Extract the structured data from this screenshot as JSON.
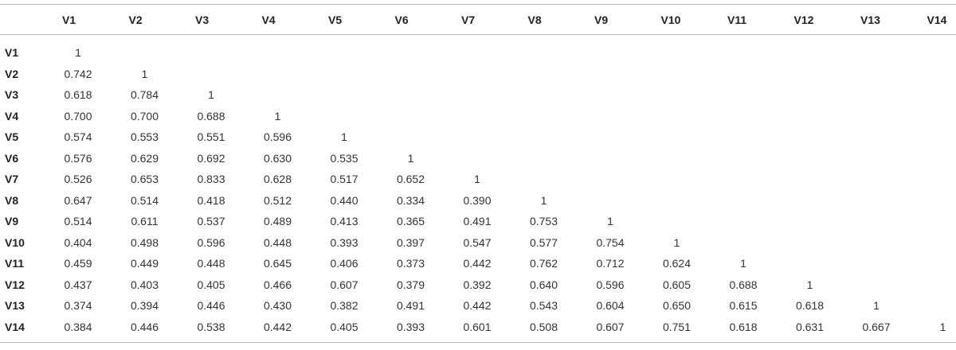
{
  "table": {
    "columns": [
      "V1",
      "V2",
      "V3",
      "V4",
      "V5",
      "V6",
      "V7",
      "V8",
      "V9",
      "V10",
      "V11",
      "V12",
      "V13",
      "V14"
    ],
    "rows": [
      {
        "label": "V1",
        "values": [
          "1"
        ]
      },
      {
        "label": "V2",
        "values": [
          "0.742",
          "1"
        ]
      },
      {
        "label": "V3",
        "values": [
          "0.618",
          "0.784",
          "1"
        ]
      },
      {
        "label": "V4",
        "values": [
          "0.700",
          "0.700",
          "0.688",
          "1"
        ]
      },
      {
        "label": "V5",
        "values": [
          "0.574",
          "0.553",
          "0.551",
          "0.596",
          "1"
        ]
      },
      {
        "label": "V6",
        "values": [
          "0.576",
          "0.629",
          "0.692",
          "0.630",
          "0.535",
          "1"
        ]
      },
      {
        "label": "V7",
        "values": [
          "0.526",
          "0.653",
          "0.833",
          "0.628",
          "0.517",
          "0.652",
          "1"
        ]
      },
      {
        "label": "V8",
        "values": [
          "0.647",
          "0.514",
          "0.418",
          "0.512",
          "0.440",
          "0.334",
          "0.390",
          "1"
        ]
      },
      {
        "label": "V9",
        "values": [
          "0.514",
          "0.611",
          "0.537",
          "0.489",
          "0.413",
          "0.365",
          "0.491",
          "0.753",
          "1"
        ]
      },
      {
        "label": "V10",
        "values": [
          "0.404",
          "0.498",
          "0.596",
          "0.448",
          "0.393",
          "0.397",
          "0.547",
          "0.577",
          "0.754",
          "1"
        ]
      },
      {
        "label": "V11",
        "values": [
          "0.459",
          "0.449",
          "0.448",
          "0.645",
          "0.406",
          "0.373",
          "0.442",
          "0.762",
          "0.712",
          "0.624",
          "1"
        ]
      },
      {
        "label": "V12",
        "values": [
          "0.437",
          "0.403",
          "0.405",
          "0.466",
          "0.607",
          "0.379",
          "0.392",
          "0.640",
          "0.596",
          "0.605",
          "0.688",
          "1"
        ]
      },
      {
        "label": "V13",
        "values": [
          "0.374",
          "0.394",
          "0.446",
          "0.430",
          "0.382",
          "0.491",
          "0.442",
          "0.543",
          "0.604",
          "0.650",
          "0.615",
          "0.618",
          "1"
        ]
      },
      {
        "label": "V14",
        "values": [
          "0.384",
          "0.446",
          "0.538",
          "0.442",
          "0.405",
          "0.393",
          "0.601",
          "0.508",
          "0.607",
          "0.751",
          "0.618",
          "0.631",
          "0.667",
          "1"
        ]
      }
    ]
  }
}
